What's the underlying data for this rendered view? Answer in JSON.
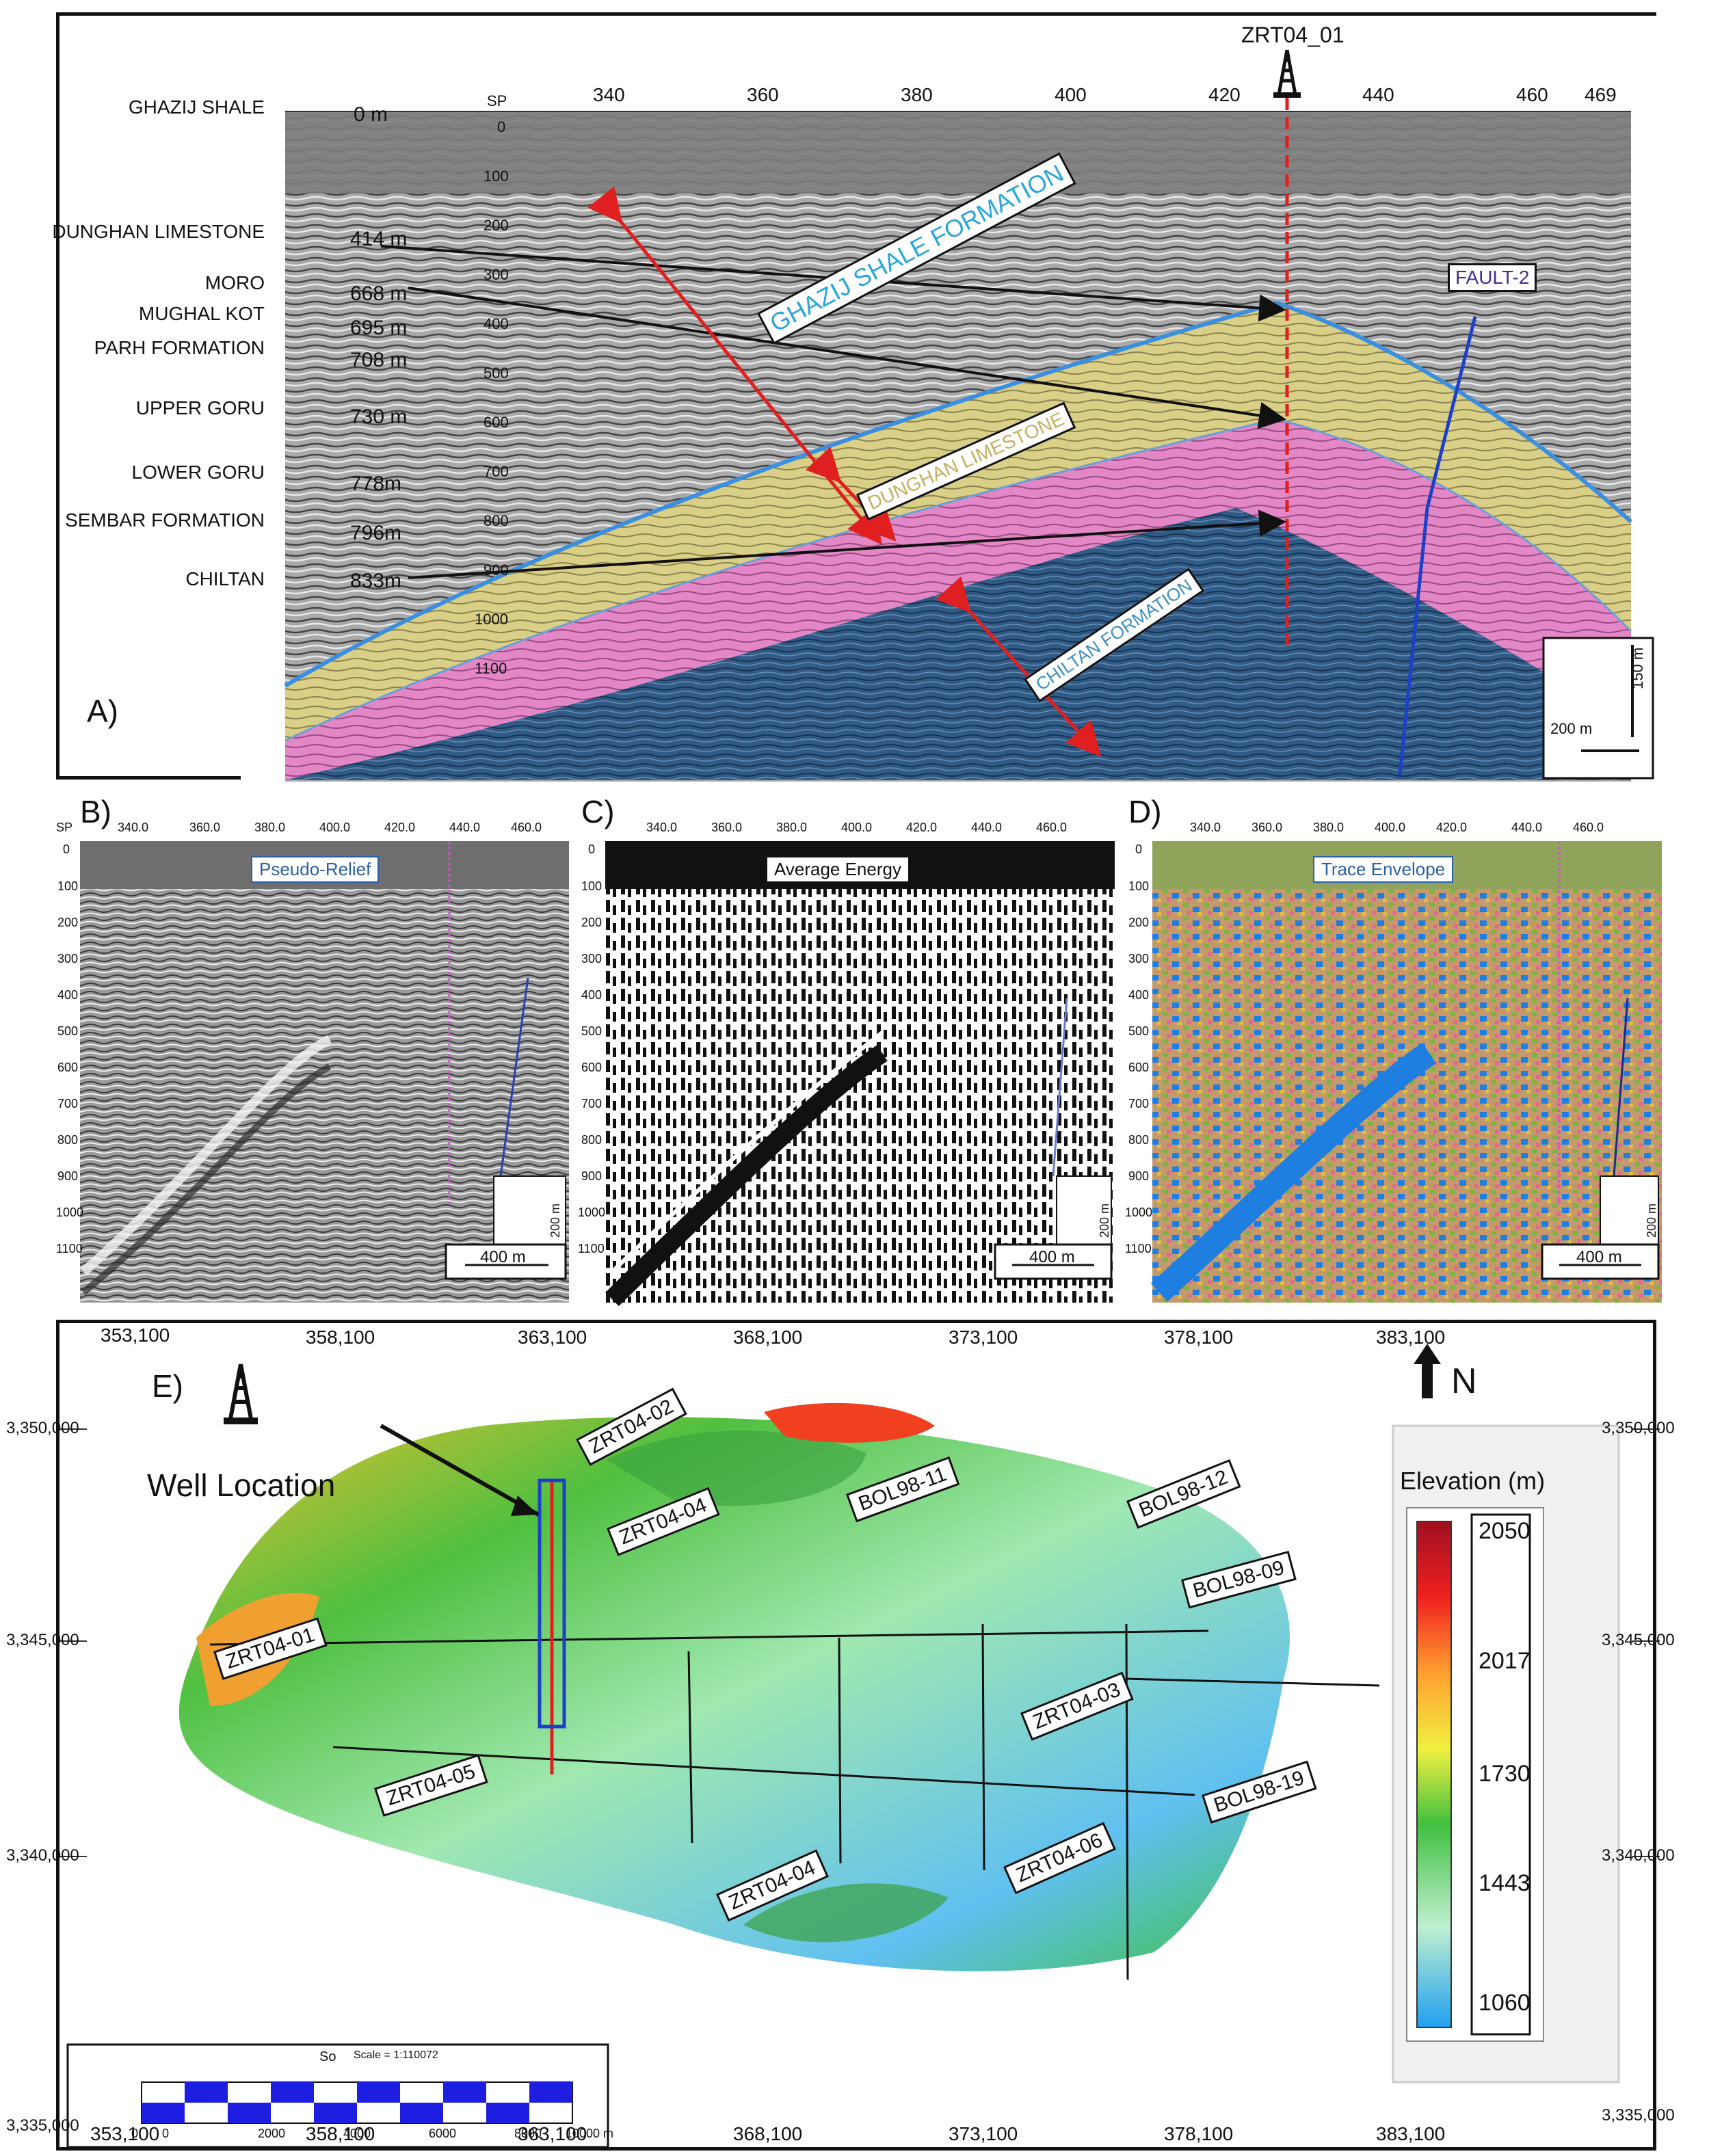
{
  "panel_a": {
    "letter": "A)",
    "well_name": "ZRT04_01",
    "sp_axis_label": "SP",
    "sp_ticks": [
      "340",
      "360",
      "380",
      "400",
      "420",
      "440",
      "460",
      "469"
    ],
    "depth_ticks": [
      "0",
      "100",
      "200",
      "300",
      "400",
      "500",
      "600",
      "700",
      "800",
      "900",
      "1000",
      "1100"
    ],
    "strat_column": [
      {
        "name": "GHAZIJ SHALE",
        "depth": "0 m"
      },
      {
        "name": "DUNGHAN LIMESTONE",
        "depth": "414 m"
      },
      {
        "name": "MORO",
        "depth": "668 m"
      },
      {
        "name": "MUGHAL KOT",
        "depth": "695 m"
      },
      {
        "name": "PARH FORMATION",
        "depth": "708 m"
      },
      {
        "name": "UPPER GORU",
        "depth": "730 m"
      },
      {
        "name": "LOWER GORU",
        "depth": "778m"
      },
      {
        "name": "SEMBAR FORMATION",
        "depth": "796m"
      },
      {
        "name": "CHILTAN",
        "depth": "833m"
      }
    ],
    "formation_labels": {
      "ghazij": "GHAZIJ SHALE FORMATION",
      "dunghan": "DUNGHAN LIMESTONE",
      "chiltan": "CHILTAN FORMATION"
    },
    "fault_label": "FAULT-2",
    "scale_h": "200 m",
    "scale_v": "150 m",
    "colors": {
      "ghazij_line": "#3b8fe0",
      "dunghan_fill": "#e8dd8a",
      "pink_fill": "#f08cd2",
      "chiltan_fill": "#2e5a8a",
      "fault": "#1e3fc8",
      "well": "#e02020",
      "arrow": "#e83030"
    }
  },
  "attribute_panels": [
    {
      "letter": "B)",
      "title": "Pseudo-Relief",
      "sp_label": "SP",
      "sp_ticks": [
        "340.0",
        "360.0",
        "380.0",
        "400.0",
        "420.0",
        "440.0",
        "460.0"
      ],
      "depth_ticks": [
        "0",
        "100",
        "200",
        "300",
        "400",
        "500",
        "600",
        "700",
        "800",
        "900",
        "1000",
        "1100"
      ],
      "scale_h": "400 m",
      "scale_v": "200 m"
    },
    {
      "letter": "C)",
      "title": "Average Energy",
      "sp_label": "",
      "sp_ticks": [
        "340.0",
        "360.0",
        "380.0",
        "400.0",
        "420.0",
        "440.0",
        "460.0"
      ],
      "depth_ticks": [
        "0",
        "100",
        "200",
        "300",
        "400",
        "500",
        "600",
        "700",
        "800",
        "900",
        "1000",
        "1100"
      ],
      "scale_h": "400 m",
      "scale_v": "200 m"
    },
    {
      "letter": "D)",
      "title": "Trace Envelope",
      "sp_label": "",
      "sp_ticks": [
        "340.0",
        "360.0",
        "380.0",
        "400.0",
        "420.0",
        "440.0",
        "460.0"
      ],
      "depth_ticks": [
        "0",
        "100",
        "200",
        "300",
        "400",
        "500",
        "600",
        "700",
        "800",
        "900",
        "1000",
        "1100"
      ],
      "scale_h": "400 m",
      "scale_v": "200 m"
    }
  ],
  "panel_e": {
    "letter": "E)",
    "x_ticks": [
      "353,100",
      "358,100",
      "363,100",
      "368,100",
      "373,100",
      "378,100",
      "383,100"
    ],
    "y_ticks_left": [
      "3,350,000",
      "3,345,000",
      "3,340,000",
      "3,335,000"
    ],
    "y_ticks_right": [
      "3,350,000",
      "3,345,000",
      "3,340,000",
      "3,335,000"
    ],
    "well_location": "Well Location",
    "north": "N",
    "legend_title": "Elevation (m)",
    "legend_values": [
      "2050",
      "2017",
      "1730",
      "1443",
      "1060"
    ],
    "line_labels": [
      "ZRT04-02",
      "ZRT04-04",
      "BOL98-11",
      "BOL98-12",
      "ZRT04-01",
      "BOL98-09",
      "ZRT04-03",
      "ZRT04-05",
      "BOL98-19",
      "ZRT04-04",
      "ZRT04-06"
    ],
    "scale_caption": "Scale = 1:110072",
    "scale_prefix": "So",
    "scale_ticks": [
      "0",
      "0",
      "2000",
      "4000",
      "6000",
      "8000",
      "10000 m"
    ]
  }
}
